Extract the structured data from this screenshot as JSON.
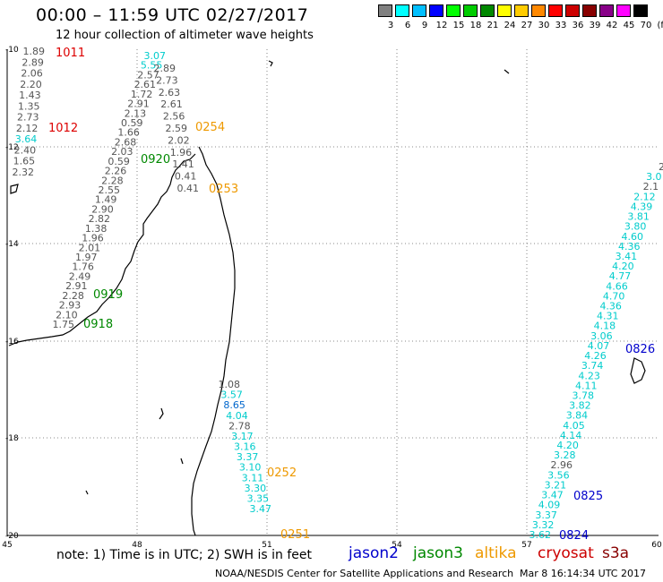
{
  "title": "00:00 – 11:59 UTC 02/27/2017",
  "subtitle": "12 hour collection of altimeter wave heights",
  "scale": {
    "unit": "(ft)",
    "colors": [
      "#808080",
      "#00ffff",
      "#00bfff",
      "#0000ff",
      "#00ff00",
      "#00cc00",
      "#008800",
      "#ffff00",
      "#ffcc00",
      "#ff8800",
      "#ff0000",
      "#cc0000",
      "#880000",
      "#880088",
      "#ff00ff",
      "#000000"
    ],
    "labels": [
      "3",
      "6",
      "9",
      "12",
      "15",
      "18",
      "21",
      "24",
      "27",
      "30",
      "33",
      "36",
      "39",
      "42",
      "45",
      "70"
    ]
  },
  "axes": {
    "lon_labels": [
      "45",
      "48",
      "51",
      "54",
      "57",
      "60"
    ],
    "lat_labels": [
      "-10",
      "-12",
      "-14",
      "-16",
      "-18",
      "-20"
    ]
  },
  "passes": [
    {
      "label": "1011",
      "color": "#dd0000"
    },
    {
      "label": "1012",
      "color": "#dd0000"
    },
    {
      "label": "0920",
      "color": "#008800"
    },
    {
      "label": "0919",
      "color": "#008800"
    },
    {
      "label": "0918",
      "color": "#008800"
    },
    {
      "label": "0254",
      "color": "#ee9900"
    },
    {
      "label": "0253",
      "color": "#ee9900"
    },
    {
      "label": "0252",
      "color": "#ee9900"
    },
    {
      "label": "0251",
      "color": "#ee9900"
    },
    {
      "label": "0826",
      "color": "#0000cc"
    },
    {
      "label": "0825",
      "color": "#0000cc"
    },
    {
      "label": "0824",
      "color": "#0000cc"
    }
  ],
  "tracks": {
    "west_a": {
      "color": "#555555",
      "values": [
        "1.89",
        "2.89",
        "2.06",
        "2.20",
        "1.43",
        "1.35",
        "2.73",
        "2.12",
        "3.64",
        "2.40",
        "1.65",
        "2.32"
      ],
      "cyan_index": 8
    },
    "west_b": {
      "color": "#555555",
      "values": [
        "3.07",
        "5.55",
        "2.57",
        "2.61",
        "1.72",
        "2.91",
        "2.13",
        "0.59",
        "1.66",
        "2.68",
        "2.03",
        "0.59",
        "2.26",
        "2.28",
        "2.55",
        "1.49",
        "2.90",
        "2.82",
        "1.38",
        "1.96",
        "2.01",
        "1.97",
        "1.76",
        "2.49",
        "2.91",
        "2.28",
        "2.93",
        "2.10",
        "1.75"
      ],
      "cyan_indices": [
        0,
        1
      ]
    },
    "west_c": {
      "color": "#555555",
      "values": [
        "2.89",
        "2.73",
        "2.63",
        "2.61",
        "2.56",
        "2.59",
        "2.02",
        "1.96",
        "1.41",
        "0.41",
        "0.41"
      ]
    },
    "south": {
      "values": [
        "1.08",
        "3.57",
        "8.65",
        "4.04",
        "2.78",
        "3.17",
        "3.16",
        "3.37",
        "3.10",
        "3.11",
        "3.30",
        "3.35",
        "3.47"
      ],
      "colors": [
        "#555555",
        "#00cccc",
        "#0066cc",
        "#00cccc",
        "#555555",
        "#00cccc",
        "#00cccc",
        "#00cccc",
        "#00cccc",
        "#00cccc",
        "#00cccc",
        "#00cccc",
        "#00cccc"
      ]
    },
    "east": {
      "color": "#00cccc",
      "values": [
        "2",
        "3.0",
        "2.1",
        "2.12",
        "4.39",
        "3.81",
        "3.80",
        "4.60",
        "4.36",
        "3.41",
        "4.20",
        "4.77",
        "4.66",
        "4.70",
        "4.36",
        "4.31",
        "4.18",
        "3.06",
        "4.07",
        "4.26",
        "3.74",
        "4.23",
        "4.11",
        "3.78",
        "3.82",
        "3.84",
        "4.05",
        "4.14",
        "4.20",
        "3.28",
        "2.96",
        "3.56",
        "3.21",
        "3.47",
        "4.09",
        "3.37",
        "3.32",
        "3.62"
      ],
      "gray_indices": [
        0,
        2,
        30
      ]
    }
  },
  "footer": {
    "note": "note:  1) Time is in UTC;  2) SWH is in feet",
    "satellites": [
      {
        "name": "jason2",
        "color": "#0000cc"
      },
      {
        "name": "jason3",
        "color": "#008800"
      },
      {
        "name": "altika",
        "color": "#ee9900"
      },
      {
        "name": "cryosat",
        "color": "#cc0000"
      },
      {
        "name": "s3a",
        "color": "#880000"
      }
    ],
    "credit": "NOAA/NESDIS Center for Satellite Applications and Research",
    "timestamp": "Mar  8 16:14:34 UTC 2017"
  }
}
